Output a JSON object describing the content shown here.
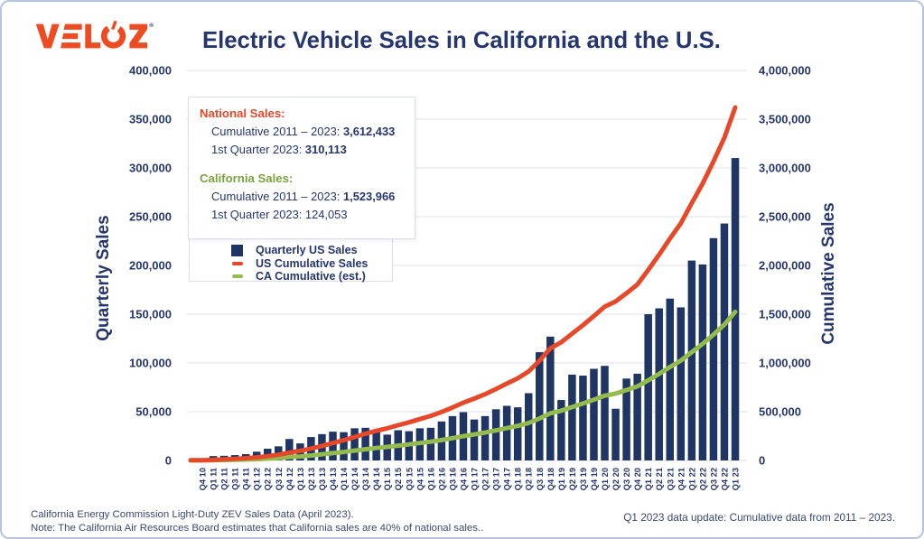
{
  "page": {
    "logo_text": "VELOZ",
    "title": "Electric Vehicle Sales in California and the U.S.",
    "footer_left_line1": "California Energy Commission Light-Duty ZEV Sales Data (April 2023).",
    "footer_left_line2": "Note: The California Air Resources Board estimates that California sales are 40% of national sales..",
    "footer_right": "Q1 2023 data update: Cumulative data from 2011 – 2023."
  },
  "colors": {
    "navy_bar": "#1F3564",
    "navy_text": "#25366E",
    "logo_orange": "#EE4B22",
    "red_line": "#E8482A",
    "green_line": "#93BB4D",
    "green_text": "#79A33E",
    "orange_text": "#E8482A",
    "grid": "#DCE1EB",
    "page_border": "#B6C4E1"
  },
  "info_box": {
    "national_header": "National Sales:",
    "national_cumulative_label": "Cumulative 2011 – 2023: ",
    "national_cumulative_value": "3,612,433",
    "national_q1_label": "1st Quarter 2023: ",
    "national_q1_value": "310,113",
    "california_header": "California Sales:",
    "california_cumulative_label": "Cumulative 2011 – 2023: ",
    "california_cumulative_value": "1,523,966",
    "california_q1_label": "1st Quarter 2023: ",
    "california_q1_value": "124,053"
  },
  "legend": {
    "items": [
      {
        "label": "Quarterly US Sales",
        "marker": "square"
      },
      {
        "label": "US Cumulative Sales",
        "marker": "line-red"
      },
      {
        "label": "CA Cumulative (est.)",
        "marker": "line-green"
      }
    ]
  },
  "chart_data": {
    "type": "bar+line",
    "title": "Electric Vehicle Sales in California and the U.S.",
    "categories": [
      "Q4 10",
      "Q1 11",
      "Q2 11",
      "Q3 11",
      "Q4 11",
      "Q1 12",
      "Q2 12",
      "Q3 12",
      "Q4 12",
      "Q1 13",
      "Q2 13",
      "Q3 13",
      "Q4 13",
      "Q1 14",
      "Q2 14",
      "Q3 14",
      "Q4 14",
      "Q1 15",
      "Q2 15",
      "Q3 15",
      "Q4 15",
      "Q1 16",
      "Q2 16",
      "Q3 16",
      "Q4 16",
      "Q1 17",
      "Q2 17",
      "Q3 17",
      "Q4 17",
      "Q1 18",
      "Q2 18",
      "Q3 18",
      "Q4 18",
      "Q1 19",
      "Q2 19",
      "Q3 19",
      "Q4 19",
      "Q1 20",
      "Q2 20",
      "Q3 20",
      "Q4 20",
      "Q1 21",
      "Q2 21",
      "Q3 21",
      "Q4 21",
      "Q1 22",
      "Q2 22",
      "Q3 22",
      "Q4 22",
      "Q1 23"
    ],
    "bar_series": {
      "name": "Quarterly US Sales",
      "axis": "left",
      "values": [
        1500,
        4500,
        4800,
        5500,
        6500,
        9000,
        12000,
        14500,
        22000,
        17500,
        24000,
        27000,
        29500,
        29000,
        33000,
        33500,
        29500,
        26500,
        31000,
        30000,
        33000,
        33500,
        40000,
        45500,
        49500,
        42000,
        45500,
        52500,
        56000,
        54500,
        69000,
        111000,
        127000,
        62000,
        88000,
        87000,
        94000,
        97000,
        53000,
        84000,
        89000,
        150000,
        156000,
        166000,
        157000,
        205000,
        201000,
        228000,
        243000,
        310113
      ]
    },
    "line_series": [
      {
        "name": "US Cumulative Sales",
        "axis": "right",
        "derivation": "cumulative_sum_of_quarterly",
        "final_total": 3612433
      },
      {
        "name": "CA Cumulative (est.)",
        "axis": "right",
        "derivation": "cumulative_scaled_to_ca_total",
        "final_total": 1523966
      }
    ],
    "left_axis": {
      "label": "Quarterly Sales",
      "min": 0,
      "max": 400000,
      "tick_step": 50000
    },
    "right_axis": {
      "label": "Cumulative Sales",
      "min": 0,
      "max": 4000000,
      "tick_step": 500000
    },
    "grid": true,
    "legend_position": "upper-left-box"
  }
}
